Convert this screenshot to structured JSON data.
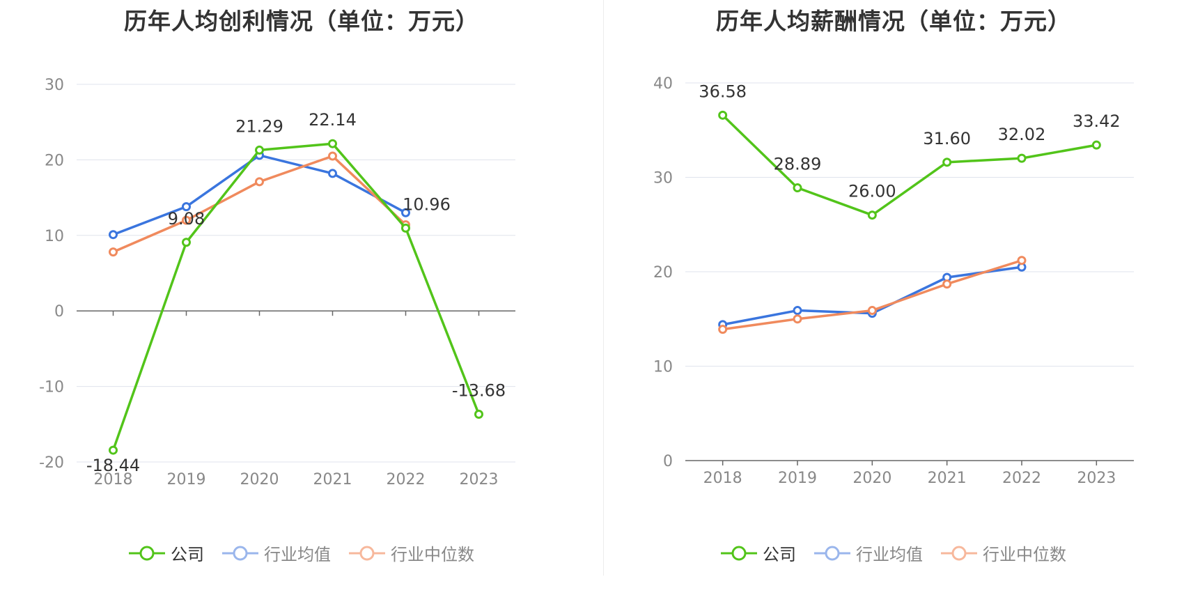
{
  "charts": [
    {
      "id": "left",
      "title": "历年人均创利情况（单位：万元）",
      "legend": [
        "公司",
        "行业均值",
        "行业中位数"
      ]
    },
    {
      "id": "right",
      "title": "历年人均薪酬情况（单位：万元）",
      "legend": [
        "公司",
        "行业均值",
        "行业中位数"
      ]
    }
  ],
  "colors": {
    "company": "#52c41a",
    "industry_avg": "#3a75de",
    "industry_median": "#f08a5d",
    "grid": "#dfe3ec",
    "axis": "#666666",
    "tick_label": "#888888",
    "data_label": "#333333"
  },
  "chart_data": [
    {
      "type": "line",
      "title": "历年人均创利情况（单位：万元）",
      "categories": [
        "2018",
        "2019",
        "2020",
        "2021",
        "2022",
        "2023"
      ],
      "ylim": [
        -20,
        30
      ],
      "yticks": [
        -20,
        -10,
        0,
        10,
        20,
        30
      ],
      "grid": true,
      "legend_position": "bottom",
      "series": [
        {
          "name": "公司",
          "values": [
            -18.44,
            9.08,
            21.29,
            22.14,
            10.96,
            -13.68
          ],
          "labels": [
            "-18.44",
            "9.08",
            "21.29",
            "22.14",
            "10.96",
            "-13.68"
          ]
        },
        {
          "name": "行业均值",
          "values": [
            10.1,
            13.8,
            20.6,
            18.2,
            13.0,
            null
          ]
        },
        {
          "name": "行业中位数",
          "values": [
            7.8,
            12.0,
            17.1,
            20.5,
            11.4,
            null
          ]
        }
      ]
    },
    {
      "type": "line",
      "title": "历年人均薪酬情况（单位：万元）",
      "categories": [
        "2018",
        "2019",
        "2020",
        "2021",
        "2022",
        "2023"
      ],
      "ylim": [
        0,
        40
      ],
      "yticks": [
        0,
        10,
        20,
        30,
        40
      ],
      "grid": true,
      "legend_position": "bottom",
      "series": [
        {
          "name": "公司",
          "values": [
            36.58,
            28.89,
            26.0,
            31.6,
            32.02,
            33.42
          ],
          "labels": [
            "36.58",
            "28.89",
            "26.00",
            "31.60",
            "32.02",
            "33.42"
          ]
        },
        {
          "name": "行业均值",
          "values": [
            14.4,
            15.9,
            15.6,
            19.4,
            20.5,
            null
          ]
        },
        {
          "name": "行业中位数",
          "values": [
            13.9,
            15.0,
            15.9,
            18.7,
            21.2,
            null
          ]
        }
      ]
    }
  ]
}
